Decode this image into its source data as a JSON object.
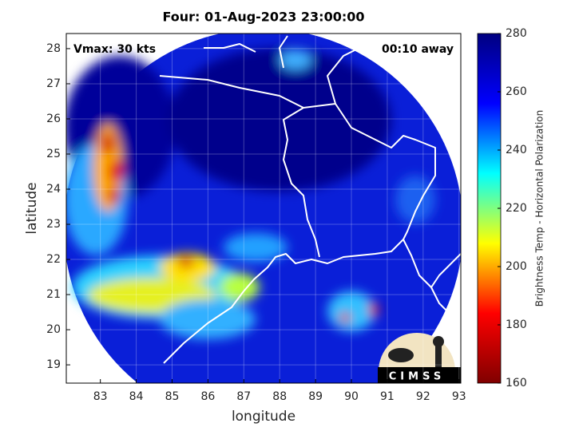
{
  "chart_data": {
    "type": "map",
    "title": "Four: 01-Aug-2023 23:00:00",
    "annotations": [
      "Vmax: 30 kts",
      "00:10 away"
    ],
    "x_label": "longitude",
    "y_label": "latitude",
    "logo": "CIMSS",
    "xlim": [
      82.05,
      93.05
    ],
    "ylim": [
      18.48,
      28.43
    ],
    "xticks": [
      83,
      84,
      85,
      86,
      87,
      88,
      89,
      90,
      91,
      92,
      93
    ],
    "yticks": [
      19,
      20,
      21,
      22,
      23,
      24,
      25,
      26,
      27,
      28
    ],
    "grid": true,
    "colorbar": {
      "label": "Brightness Temp - Horizontal Polarization",
      "lim": [
        160,
        280
      ],
      "ticks": [
        160,
        180,
        200,
        220,
        240,
        260,
        280
      ],
      "colormap": [
        "#800000",
        "#ff0000",
        "#ffff00",
        "#00ffff",
        "#0000ff",
        "#000080"
      ]
    }
  }
}
